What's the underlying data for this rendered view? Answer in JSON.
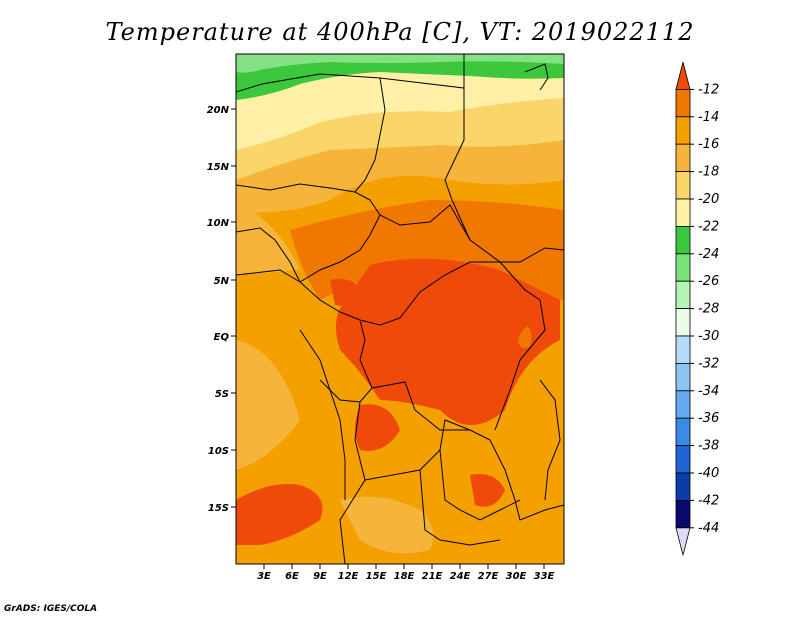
{
  "title": "Temperature at 400hPa [C], VT: 2019022112",
  "credit": "GrADS: IGES/COLA",
  "map": {
    "lon_ticks": [
      "3E",
      "6E",
      "9E",
      "12E",
      "15E",
      "18E",
      "21E",
      "24E",
      "27E",
      "30E",
      "33E"
    ],
    "lat_ticks": [
      "20N",
      "15N",
      "10N",
      "5N",
      "EQ",
      "5S",
      "10S",
      "15S"
    ]
  },
  "colorbar": {
    "labels": [
      "-12",
      "-14",
      "-16",
      "-18",
      "-20",
      "-22",
      "-24",
      "-26",
      "-28",
      "-30",
      "-32",
      "-34",
      "-36",
      "-38",
      "-40",
      "-42",
      "-44"
    ],
    "colors": [
      "#f04a0a",
      "#f07800",
      "#f4a000",
      "#f6b53a",
      "#fad56a",
      "#fff0a8",
      "#3cc83c",
      "#78e478",
      "#b4f4b4",
      "#eafce8",
      "#b4dcf8",
      "#8cc4f4",
      "#64a8f0",
      "#3c8ae8",
      "#1e64d2",
      "#0a3caa",
      "#0a0a6e",
      "#dcdcf4"
    ]
  }
}
